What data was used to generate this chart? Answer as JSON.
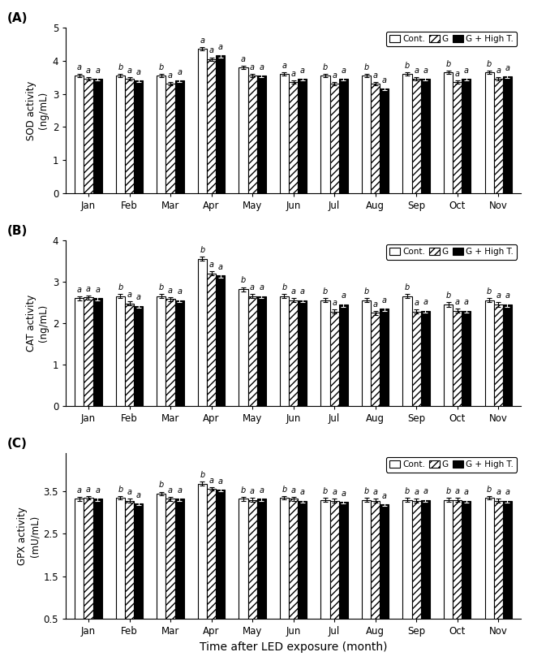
{
  "months": [
    "Jan",
    "Feb",
    "Mar",
    "Apr",
    "May",
    "Jun",
    "Jul",
    "Aug",
    "Sep",
    "Oct",
    "Nov"
  ],
  "panel_labels": [
    "(A)",
    "(B)",
    "(C)"
  ],
  "SOD": {
    "ylabel": "SOD activity\n(ng/mL)",
    "ylim": [
      0,
      5
    ],
    "yticks": [
      0,
      1,
      2,
      3,
      4,
      5
    ],
    "cont": [
      3.55,
      3.55,
      3.55,
      4.35,
      3.8,
      3.6,
      3.55,
      3.55,
      3.6,
      3.65,
      3.65
    ],
    "g": [
      3.45,
      3.45,
      3.3,
      4.05,
      3.55,
      3.35,
      3.3,
      3.3,
      3.45,
      3.35,
      3.45
    ],
    "highT": [
      3.45,
      3.4,
      3.4,
      4.15,
      3.55,
      3.45,
      3.45,
      3.15,
      3.45,
      3.45,
      3.52
    ],
    "cont_err": [
      0.05,
      0.05,
      0.05,
      0.05,
      0.05,
      0.05,
      0.05,
      0.05,
      0.05,
      0.05,
      0.05
    ],
    "g_err": [
      0.05,
      0.05,
      0.05,
      0.05,
      0.05,
      0.05,
      0.05,
      0.05,
      0.05,
      0.05,
      0.05
    ],
    "highT_err": [
      0.05,
      0.05,
      0.05,
      0.05,
      0.05,
      0.05,
      0.05,
      0.05,
      0.05,
      0.05,
      0.05
    ],
    "labels_cont": [
      "a",
      "b",
      "b",
      "a",
      "a",
      "a",
      "b",
      "b",
      "b",
      "b",
      "b"
    ],
    "labels_g": [
      "a",
      "a",
      "a",
      "a",
      "a",
      "a",
      "a",
      "a",
      "a",
      "a",
      "a"
    ],
    "labels_highT": [
      "a",
      "a",
      "a",
      "a",
      "a",
      "a",
      "a",
      "a",
      "a",
      "a",
      "a"
    ]
  },
  "CAT": {
    "ylabel": "CAT activity\n(ng/mL)",
    "ylim": [
      0,
      4
    ],
    "yticks": [
      0,
      1,
      2,
      3,
      4
    ],
    "cont": [
      2.6,
      2.65,
      2.65,
      3.55,
      2.82,
      2.65,
      2.55,
      2.55,
      2.65,
      2.45,
      2.55
    ],
    "g": [
      2.62,
      2.48,
      2.58,
      3.2,
      2.65,
      2.55,
      2.28,
      2.25,
      2.28,
      2.3,
      2.45
    ],
    "highT": [
      2.6,
      2.42,
      2.55,
      3.15,
      2.65,
      2.55,
      2.45,
      2.35,
      2.3,
      2.3,
      2.45
    ],
    "cont_err": [
      0.05,
      0.05,
      0.05,
      0.05,
      0.05,
      0.05,
      0.05,
      0.05,
      0.05,
      0.05,
      0.05
    ],
    "g_err": [
      0.05,
      0.05,
      0.05,
      0.05,
      0.05,
      0.05,
      0.05,
      0.05,
      0.05,
      0.05,
      0.05
    ],
    "highT_err": [
      0.05,
      0.05,
      0.05,
      0.05,
      0.05,
      0.05,
      0.05,
      0.05,
      0.05,
      0.05,
      0.05
    ],
    "labels_cont": [
      "a",
      "b",
      "b",
      "b",
      "b",
      "b",
      "b",
      "b",
      "b",
      "b",
      "b"
    ],
    "labels_g": [
      "a",
      "a",
      "a",
      "a",
      "a",
      "a",
      "a",
      "a",
      "a",
      "a",
      "a"
    ],
    "labels_highT": [
      "a",
      "a",
      "a",
      "a",
      "a",
      "a",
      "a",
      "a",
      "a",
      "a",
      "a"
    ]
  },
  "GPX": {
    "ylabel": "GPX activity\n(mU/mL)",
    "ylim": [
      0.5,
      4.4
    ],
    "yticks": [
      0.5,
      1.5,
      2.5,
      3.5
    ],
    "ytick_labels": [
      "0.5",
      "1.5",
      "2.5",
      "3.5"
    ],
    "cont": [
      3.32,
      3.35,
      3.45,
      3.68,
      3.32,
      3.35,
      3.3,
      3.3,
      3.3,
      3.3,
      3.35
    ],
    "g": [
      3.35,
      3.28,
      3.32,
      3.55,
      3.3,
      3.32,
      3.28,
      3.28,
      3.28,
      3.3,
      3.28
    ],
    "highT": [
      3.32,
      3.22,
      3.32,
      3.54,
      3.32,
      3.28,
      3.25,
      3.2,
      3.3,
      3.28,
      3.28
    ],
    "cont_err": [
      0.04,
      0.04,
      0.04,
      0.04,
      0.04,
      0.04,
      0.04,
      0.04,
      0.04,
      0.04,
      0.04
    ],
    "g_err": [
      0.04,
      0.04,
      0.04,
      0.04,
      0.04,
      0.04,
      0.04,
      0.04,
      0.04,
      0.04,
      0.04
    ],
    "highT_err": [
      0.04,
      0.04,
      0.04,
      0.04,
      0.04,
      0.04,
      0.04,
      0.04,
      0.04,
      0.04,
      0.04
    ],
    "labels_cont": [
      "a",
      "b",
      "b",
      "b",
      "b",
      "b",
      "b",
      "b",
      "b",
      "b",
      "b"
    ],
    "labels_g": [
      "a",
      "a",
      "a",
      "a",
      "a",
      "a",
      "a",
      "a",
      "a",
      "a",
      "a"
    ],
    "labels_highT": [
      "a",
      "a",
      "a",
      "a",
      "a",
      "a",
      "a",
      "a",
      "a",
      "a",
      "a"
    ]
  },
  "legend_labels": [
    "Cont.",
    "G",
    "G + High T."
  ],
  "xlabel": "Time after LED exposure (month)",
  "bar_width": 0.22
}
